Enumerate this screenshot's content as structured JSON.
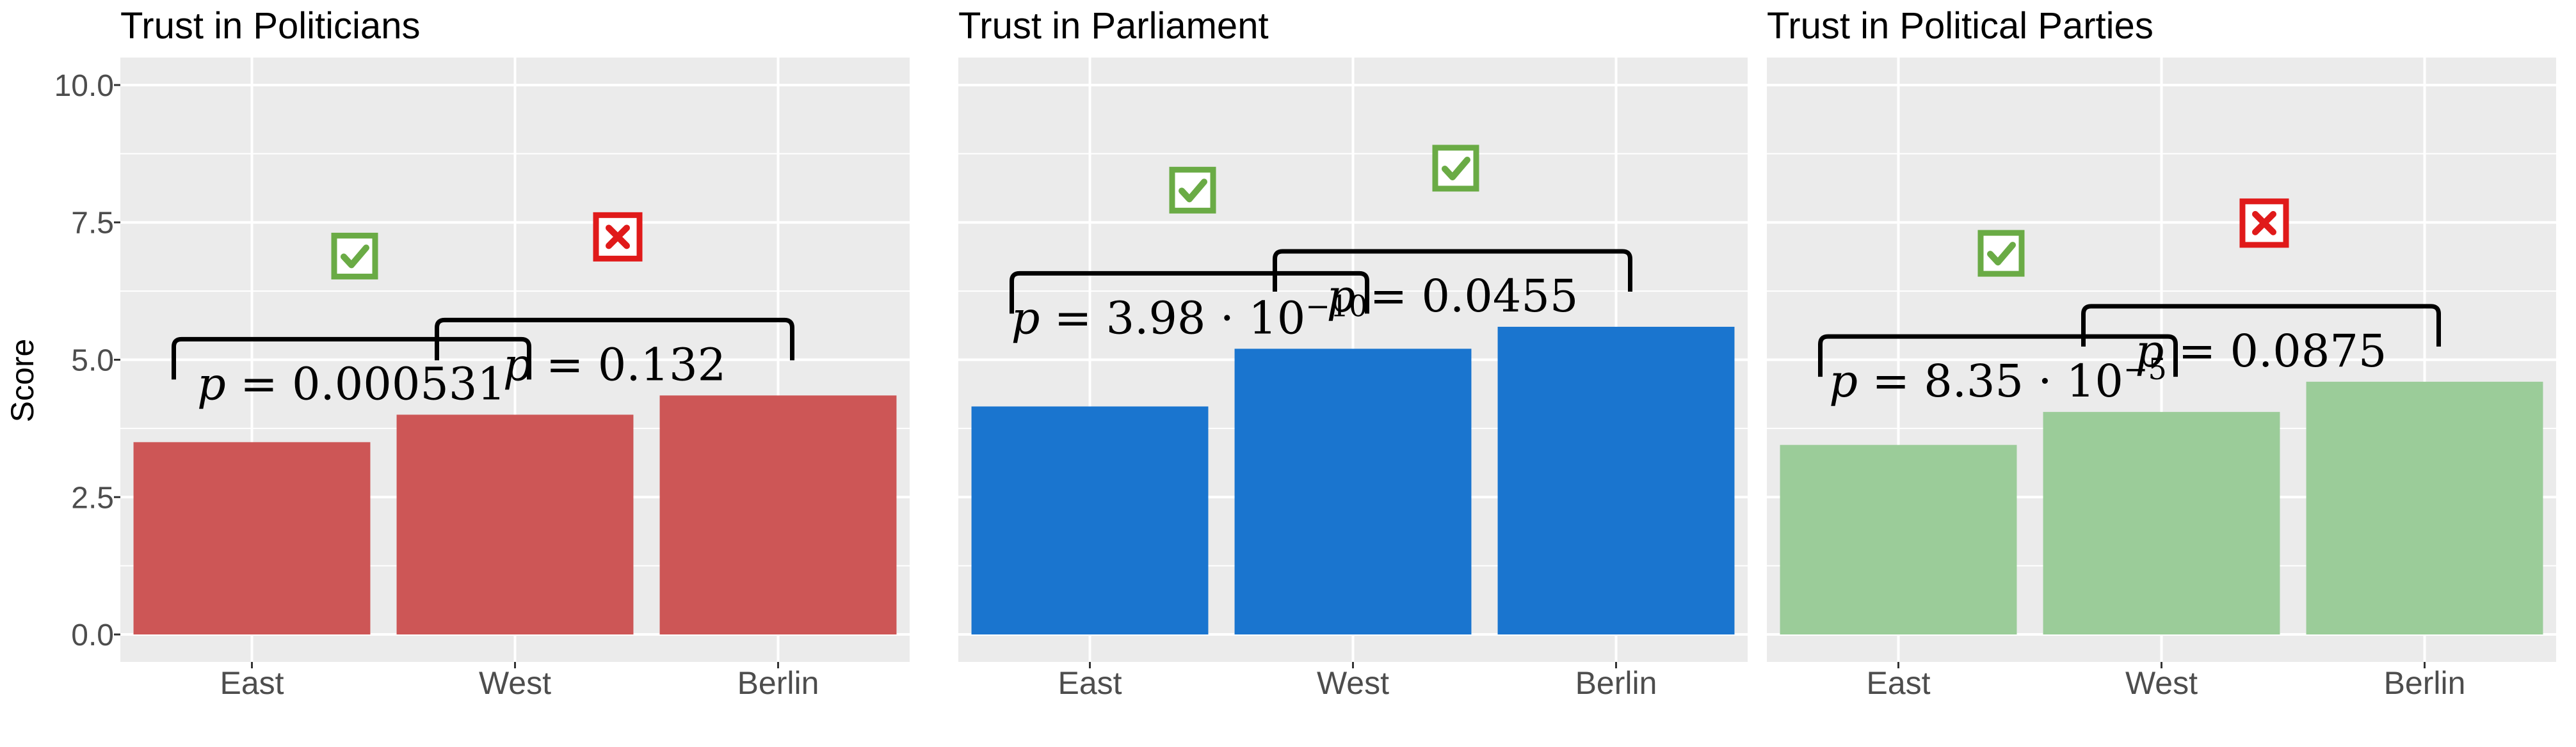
{
  "chart_data": {
    "type": "bar",
    "ylabel": "Score",
    "ylim": [
      -0.5,
      10.5
    ],
    "yticks": [
      "0.0",
      "2.5",
      "5.0",
      "7.5",
      "10.0"
    ],
    "categories": [
      "East",
      "West",
      "Berlin"
    ],
    "grid": true,
    "panels": [
      {
        "title": "Trust in Politicians",
        "color": "#CD5656",
        "values": [
          3.5,
          4.0,
          4.35
        ],
        "comparisons": [
          {
            "from": 0,
            "to": 1,
            "p_base": "0.000531",
            "p_exp": "",
            "significant": true
          },
          {
            "from": 1,
            "to": 2,
            "p_base": "0.132",
            "p_exp": "",
            "significant": false
          }
        ]
      },
      {
        "title": "Trust in Parliament",
        "color": "#1A75CF",
        "values": [
          4.15,
          5.2,
          5.6
        ],
        "comparisons": [
          {
            "from": 0,
            "to": 1,
            "p_base": "3.98 · 10",
            "p_exp": "−10",
            "significant": true
          },
          {
            "from": 1,
            "to": 2,
            "p_base": "0.0455",
            "p_exp": "",
            "significant": true
          }
        ]
      },
      {
        "title": "Trust in Political Parties",
        "color": "#9BCC99",
        "values": [
          3.45,
          4.05,
          4.6
        ],
        "comparisons": [
          {
            "from": 0,
            "to": 1,
            "p_base": "8.35 · 10",
            "p_exp": "−5",
            "significant": true
          },
          {
            "from": 1,
            "to": 2,
            "p_base": "0.0875",
            "p_exp": "",
            "significant": false
          }
        ]
      }
    ],
    "colors": {
      "panel_bg": "#EBEBEB",
      "gridline": "#FFFFFF",
      "check": "#6AAB45",
      "cross": "#E01A1A"
    },
    "icons": {
      "significant": "checkmark-icon",
      "not_significant": "cross-icon"
    },
    "p_symbol": "p = "
  }
}
